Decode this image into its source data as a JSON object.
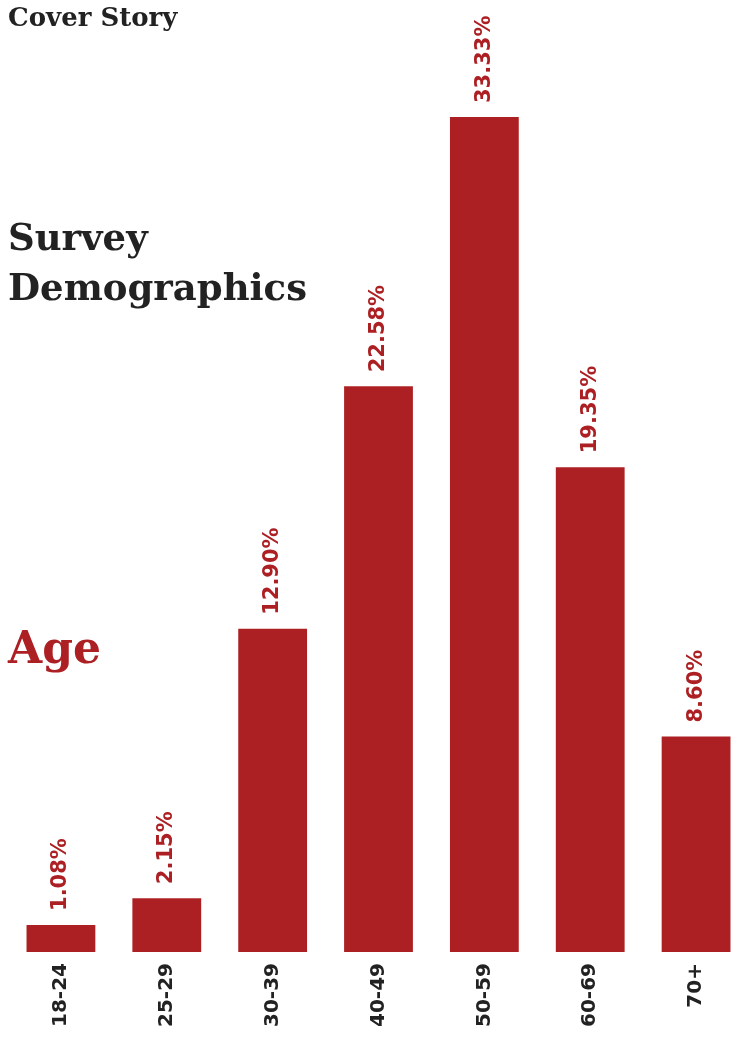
{
  "chart_data": {
    "type": "bar",
    "title": "Survey Demographics",
    "subtitle": "Age",
    "annotations": [
      "Cover Story"
    ],
    "categories": [
      "18-24",
      "25-29",
      "30-39",
      "40-49",
      "50-59",
      "60-69",
      "70+"
    ],
    "values": [
      1.08,
      2.15,
      12.9,
      22.58,
      33.33,
      19.35,
      8.6
    ],
    "value_labels": [
      "1.08%",
      "2.15%",
      "12.90%",
      "22.58%",
      "33.33%",
      "19.35%",
      "8.60%"
    ],
    "color": "#ac2023",
    "grid": false,
    "legend": false
  }
}
